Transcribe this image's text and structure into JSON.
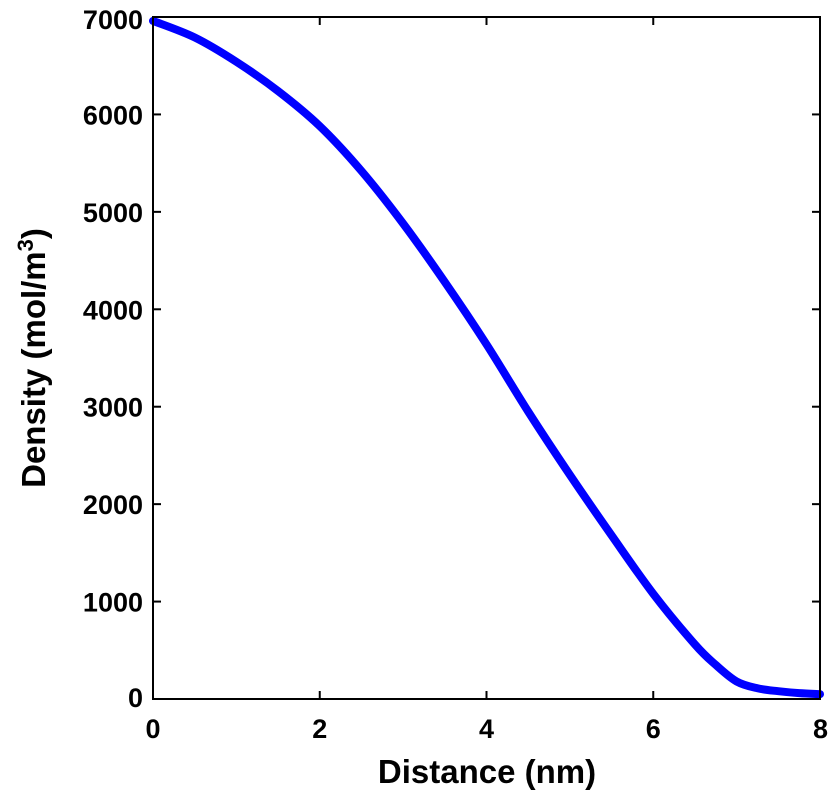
{
  "chart_data": {
    "type": "line",
    "title": "",
    "xlabel": "Distance (nm)",
    "ylabel": {
      "main": "Density (mol/m",
      "superscript": "3",
      "close": ")"
    },
    "xlim": [
      0,
      8
    ],
    "ylim": [
      0,
      7000
    ],
    "xticks": [
      0,
      2,
      4,
      6,
      8
    ],
    "yticks": [
      0,
      1000,
      2000,
      3000,
      4000,
      5000,
      6000,
      7000
    ],
    "grid": false,
    "legend": "none",
    "series": [
      {
        "color": "#0000ff",
        "x": [
          0,
          0.5,
          1.0,
          1.5,
          2.0,
          2.5,
          3.0,
          3.5,
          4.0,
          4.5,
          5.0,
          5.5,
          6.0,
          6.5,
          6.75,
          7.0,
          7.25,
          7.5,
          7.75,
          8.0
        ],
        "y": [
          6960,
          6790,
          6540,
          6240,
          5880,
          5420,
          4880,
          4280,
          3640,
          2950,
          2300,
          1680,
          1080,
          560,
          350,
          180,
          110,
          80,
          60,
          50
        ]
      }
    ]
  }
}
